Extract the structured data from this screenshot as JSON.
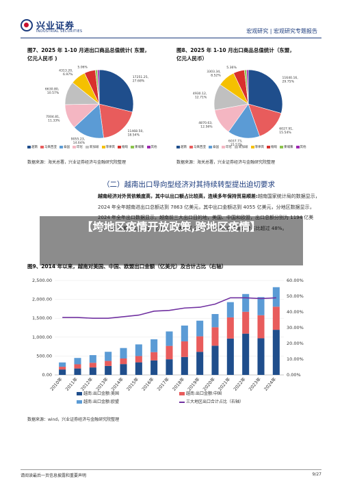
{
  "header": {
    "brand_cn": "兴业证券",
    "brand_en": "INDUSTRIAL SECURITIES",
    "breadcrumb": "宏观研究 | 宏观研究专题报告"
  },
  "fig7": {
    "title_line1": "图7、2025 年 1-10 月进出口商品总值统计( 东盟，",
    "title_line2": "亿元人民币 )",
    "source": "数据来源：海关总署，兴业证券经济与金融研究院整理"
  },
  "fig8": {
    "title_line1": "图8、2025 年 1-10 月出口商品总值统计（东盟，",
    "title_line2": "亿元人民币）",
    "source": "数据来源：海关总署，兴业证券经济与金融研究院整理"
  },
  "section_title": "（二）越南出口导向型经济对其持续转型提出迫切要求",
  "paragraph": {
    "bold": "越南经济对外贸依赖度高，其中以出口额占比较高，连续多年保持贸易顺差:",
    "text": "越南国家统计局的数据显示，2024 年全年越南进出口总额达到 7863 亿美元，其中出口金额达到 4055 亿美元，分地区数据显示，2024 年全年出口数据显示，越南前三大出口目的地，美国、中国和欧盟，出口总额分别为 1194 亿美元、612 亿美元以及 517 亿美元，三大地区 2024 年全年出口金额合计占比超过 48%。"
  },
  "overlay_text": "【垮地区疫情开放政策,跨地区疫情】",
  "fig9": {
    "title": "图9、2014 年以来，越南对美国、中国、欧盟出口金额（亿美元）及合计占比（右轴）",
    "source": "数据来源：wind，兴业证券经济与金融研究院整理",
    "legend": {
      "us": "越南:出口金额:美国",
      "cn": "越南:出口金额:中国",
      "eu": "越南:出口金额:欧盟",
      "share": "三大地区出口合计占比（右轴）"
    }
  },
  "footer": {
    "left": "请阅读最后一页信息披露和重要声明",
    "right": "9/27"
  },
  "colors": {
    "us": "#1f4e8c",
    "cn": "#e85c5c",
    "eu": "#5b9bd5",
    "share": "#7030a0"
  },
  "chart_data": [
    {
      "type": "pie",
      "title": "图7、2025 年 1-10 月进出口商品总值统计( 东盟，亿元人民币 )",
      "categories": [
        "越南",
        "马来西亚",
        "泰国",
        "印尼",
        "新加坡",
        "菲律宾",
        "缅甸",
        "柬埔寨",
        "其他"
      ],
      "values": [
        17251.25,
        11468.5,
        9055.23,
        7004.81,
        6630.8,
        4313.2,
        3123.81,
        600,
        500
      ],
      "labels": [
        "17251.25,\n27.68%",
        "11468.50,\n18.54%",
        "9055.23,\n14.64%",
        "7004.81,\n11.33%",
        "6630.80,\n10.57%",
        "4313.20,\n6.97%",
        "3123.81,\n5.06%",
        "",
        ""
      ],
      "colors": [
        "#1f4e8c",
        "#e85c5c",
        "#5b9bd5",
        "#f4b6c2",
        "#c0c0c0",
        "#f5c000",
        "#d9302c",
        "#8bc34a",
        "#9c27b0"
      ]
    },
    {
      "type": "pie",
      "title": "图8、2025 年 1-10 月出口商品总值统计（东盟，亿元人民币）",
      "categories": [
        "越南",
        "马来西亚",
        "泰国",
        "印尼",
        "新加坡",
        "菲律宾",
        "缅甸",
        "柬埔寨",
        "其他"
      ],
      "values": [
        11640.16,
        6027.91,
        6037.73,
        4870.63,
        4930.12,
        3303.34,
        2079.48,
        400,
        330
      ],
      "labels": [
        "11640.16,\n29.75%",
        "6027.91,\n15.54%",
        "6037.73,\n15.57%",
        "4870.63,\n12.56%",
        "4930.12,\n12.71%",
        "3303.34,\n8.52%",
        "2079.48,\n5.36%",
        "",
        ""
      ],
      "colors": [
        "#1f4e8c",
        "#e85c5c",
        "#5b9bd5",
        "#f4b6c2",
        "#c0c0c0",
        "#f5c000",
        "#d9302c",
        "#8bc34a",
        "#9c27b0"
      ]
    },
    {
      "type": "bar",
      "stacked": true,
      "title": "图9、2014 年以来，越南对美国、中国、欧盟出口金额（亿美元）及合计占比（右轴）",
      "categories": [
        "2010年",
        "2011年",
        "2012年",
        "2013年",
        "2014年",
        "2015年",
        "2016年",
        "2017年",
        "2018年",
        "2019年",
        "2020年",
        "2021年",
        "2022年",
        "2023年",
        "2024年"
      ],
      "series": [
        {
          "name": "越南:出口金额:美国",
          "values": [
            143,
            170,
            197,
            238,
            287,
            333,
            384,
            414,
            475,
            611,
            773,
            963,
            1093,
            970,
            1194
          ]
        },
        {
          "name": "越南:出口金额:中国",
          "values": [
            73,
            111,
            124,
            132,
            148,
            166,
            219,
            354,
            414,
            411,
            489,
            560,
            579,
            610,
            612
          ]
        },
        {
          "name": "越南:出口金额:欧盟",
          "values": [
            114,
            168,
            203,
            242,
            277,
            309,
            340,
            383,
            418,
            414,
            350,
            404,
            470,
            480,
            517
          ]
        }
      ],
      "line": {
        "name": "三大地区出口合计占比（右轴）",
        "values": [
          0.365,
          0.365,
          0.36,
          0.36,
          0.37,
          0.38,
          0.405,
          0.41,
          0.425,
          0.43,
          0.45,
          0.49,
          0.49,
          0.485,
          0.49
        ]
      },
      "ylim": [
        0,
        2500
      ],
      "y2lim": [
        0,
        0.6
      ],
      "yticks": [
        "2,500.00",
        "2,000.00",
        "1,500.00",
        "1,000.00",
        "500.00",
        "0.00"
      ],
      "y2ticks": [
        "60.00%",
        "50.00%",
        "40.00%",
        "30.00%",
        "20.00%",
        "10.00%",
        "0.00%"
      ]
    }
  ]
}
